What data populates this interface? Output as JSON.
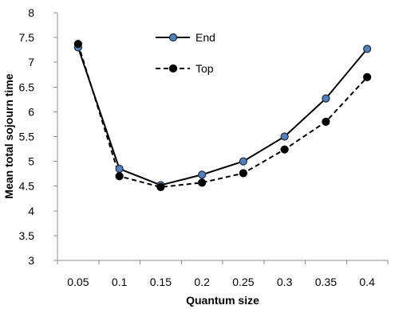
{
  "chart_data": {
    "type": "line",
    "title": "",
    "xlabel": "Quantum size",
    "ylabel": "Mean total sojourn time",
    "categories": [
      "0.05",
      "0.1",
      "0.15",
      "0.2",
      "0.25",
      "0.3",
      "0.35",
      "0.4"
    ],
    "xlim": [
      0.05,
      0.4
    ],
    "ylim": [
      3,
      8
    ],
    "yticks": [
      "3",
      "3.5",
      "4",
      "4.5",
      "5",
      "5.5",
      "6",
      "6.5",
      "7",
      "7.5",
      "8"
    ],
    "grid": false,
    "legend_position": "top-center",
    "series": [
      {
        "name": "End",
        "line_style": "solid",
        "marker_fill": "#4f81bd",
        "marker_edge": "#1f2a3a",
        "line_color": "#000000",
        "values": [
          7.3,
          4.85,
          4.52,
          4.73,
          5.0,
          5.5,
          6.27,
          7.27
        ]
      },
      {
        "name": "Top",
        "line_style": "dashed",
        "marker_fill": "#000000",
        "marker_edge": "#000000",
        "line_color": "#000000",
        "values": [
          7.37,
          4.7,
          4.48,
          4.57,
          4.76,
          5.24,
          5.8,
          6.7
        ]
      }
    ]
  }
}
